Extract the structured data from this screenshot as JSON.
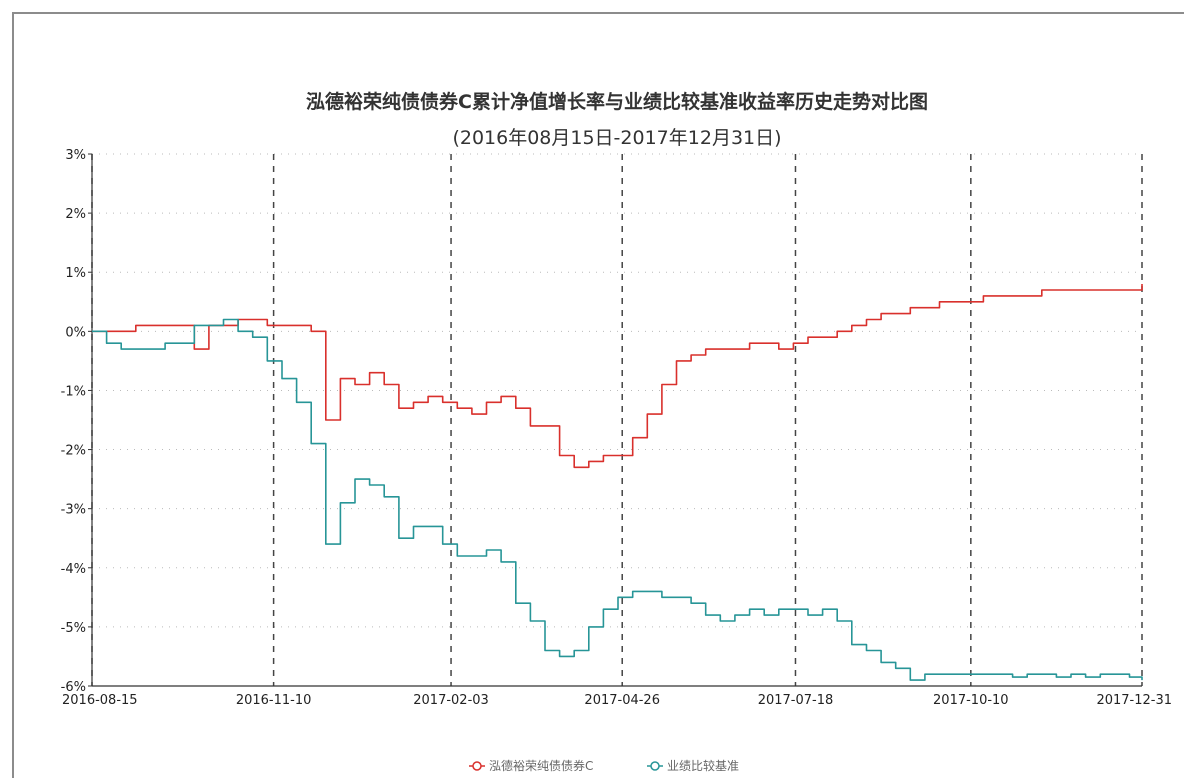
{
  "chart_data": {
    "type": "line",
    "title": "泓德裕荣纯债债券C累计净值增长率与业绩比较基准收益率历史走势对比图",
    "subtitle": "(2016年08月15日-2017年12月31日)",
    "y_ticks": [
      "3%",
      "2%",
      "1%",
      "0%",
      "-1%",
      "-2%",
      "-3%",
      "-4%",
      "-5%",
      "-6%"
    ],
    "ylim": [
      -6,
      3
    ],
    "x_ticks": [
      "2016-08-15",
      "2016-11-10",
      "2017-02-03",
      "2017-04-26",
      "2017-07-18",
      "2017-10-10",
      "2017-12-31"
    ],
    "grid": "dotted horizontal, dashed vertical",
    "legend_position": "bottom-center",
    "x": [
      "2016-08-15",
      "2016-08-22",
      "2016-08-29",
      "2016-09-05",
      "2016-09-12",
      "2016-09-19",
      "2016-09-26",
      "2016-10-03",
      "2016-10-10",
      "2016-10-17",
      "2016-10-24",
      "2016-10-31",
      "2016-11-07",
      "2016-11-14",
      "2016-11-21",
      "2016-11-28",
      "2016-12-05",
      "2016-12-12",
      "2016-12-19",
      "2016-12-26",
      "2017-01-02",
      "2017-01-09",
      "2017-01-16",
      "2017-01-23",
      "2017-01-30",
      "2017-02-06",
      "2017-02-13",
      "2017-02-20",
      "2017-02-27",
      "2017-03-06",
      "2017-03-13",
      "2017-03-20",
      "2017-03-27",
      "2017-04-03",
      "2017-04-10",
      "2017-04-17",
      "2017-04-24",
      "2017-05-01",
      "2017-05-08",
      "2017-05-15",
      "2017-05-22",
      "2017-05-29",
      "2017-06-05",
      "2017-06-12",
      "2017-06-19",
      "2017-06-26",
      "2017-07-03",
      "2017-07-10",
      "2017-07-17",
      "2017-07-24",
      "2017-07-31",
      "2017-08-07",
      "2017-08-14",
      "2017-08-21",
      "2017-08-28",
      "2017-09-04",
      "2017-09-11",
      "2017-09-18",
      "2017-09-25",
      "2017-10-02",
      "2017-10-09",
      "2017-10-16",
      "2017-10-23",
      "2017-10-30",
      "2017-11-06",
      "2017-11-13",
      "2017-11-20",
      "2017-11-27",
      "2017-12-04",
      "2017-12-11",
      "2017-12-18",
      "2017-12-25",
      "2017-12-31"
    ],
    "series": [
      {
        "name": "泓德裕荣纯债债券C",
        "color": "#d9302c",
        "values": [
          0.0,
          0.0,
          0.0,
          0.1,
          0.1,
          0.1,
          0.1,
          -0.3,
          0.1,
          0.1,
          0.2,
          0.2,
          0.1,
          0.1,
          0.1,
          0.0,
          -1.5,
          -0.8,
          -0.9,
          -0.7,
          -0.9,
          -1.3,
          -1.2,
          -1.1,
          -1.2,
          -1.3,
          -1.4,
          -1.2,
          -1.1,
          -1.3,
          -1.6,
          -1.6,
          -2.1,
          -2.3,
          -2.2,
          -2.1,
          -2.1,
          -1.8,
          -1.4,
          -0.9,
          -0.5,
          -0.4,
          -0.3,
          -0.3,
          -0.3,
          -0.2,
          -0.2,
          -0.3,
          -0.2,
          -0.1,
          -0.1,
          0.0,
          0.1,
          0.2,
          0.3,
          0.3,
          0.4,
          0.4,
          0.5,
          0.5,
          0.5,
          0.6,
          0.6,
          0.6,
          0.6,
          0.7,
          0.7,
          0.7,
          0.7,
          0.7,
          0.7,
          0.7,
          0.8
        ]
      },
      {
        "name": "业绩比较基准",
        "color": "#279597",
        "values": [
          0.0,
          -0.2,
          -0.3,
          -0.3,
          -0.3,
          -0.2,
          -0.2,
          0.1,
          0.1,
          0.2,
          0.0,
          -0.1,
          -0.5,
          -0.8,
          -1.2,
          -1.9,
          -3.6,
          -2.9,
          -2.5,
          -2.6,
          -2.8,
          -3.5,
          -3.3,
          -3.3,
          -3.6,
          -3.8,
          -3.8,
          -3.7,
          -3.9,
          -4.6,
          -4.9,
          -5.4,
          -5.5,
          -5.4,
          -5.0,
          -4.7,
          -4.5,
          -4.4,
          -4.4,
          -4.5,
          -4.5,
          -4.6,
          -4.8,
          -4.9,
          -4.8,
          -4.7,
          -4.8,
          -4.7,
          -4.7,
          -4.8,
          -4.7,
          -4.9,
          -5.3,
          -5.4,
          -5.6,
          -5.7,
          -5.9,
          -5.8,
          -5.8,
          -5.8,
          -5.8,
          -5.8,
          -5.8,
          -5.85,
          -5.8,
          -5.8,
          -5.85,
          -5.8,
          -5.85,
          -5.8,
          -5.8,
          -5.85,
          -5.9
        ]
      }
    ]
  }
}
